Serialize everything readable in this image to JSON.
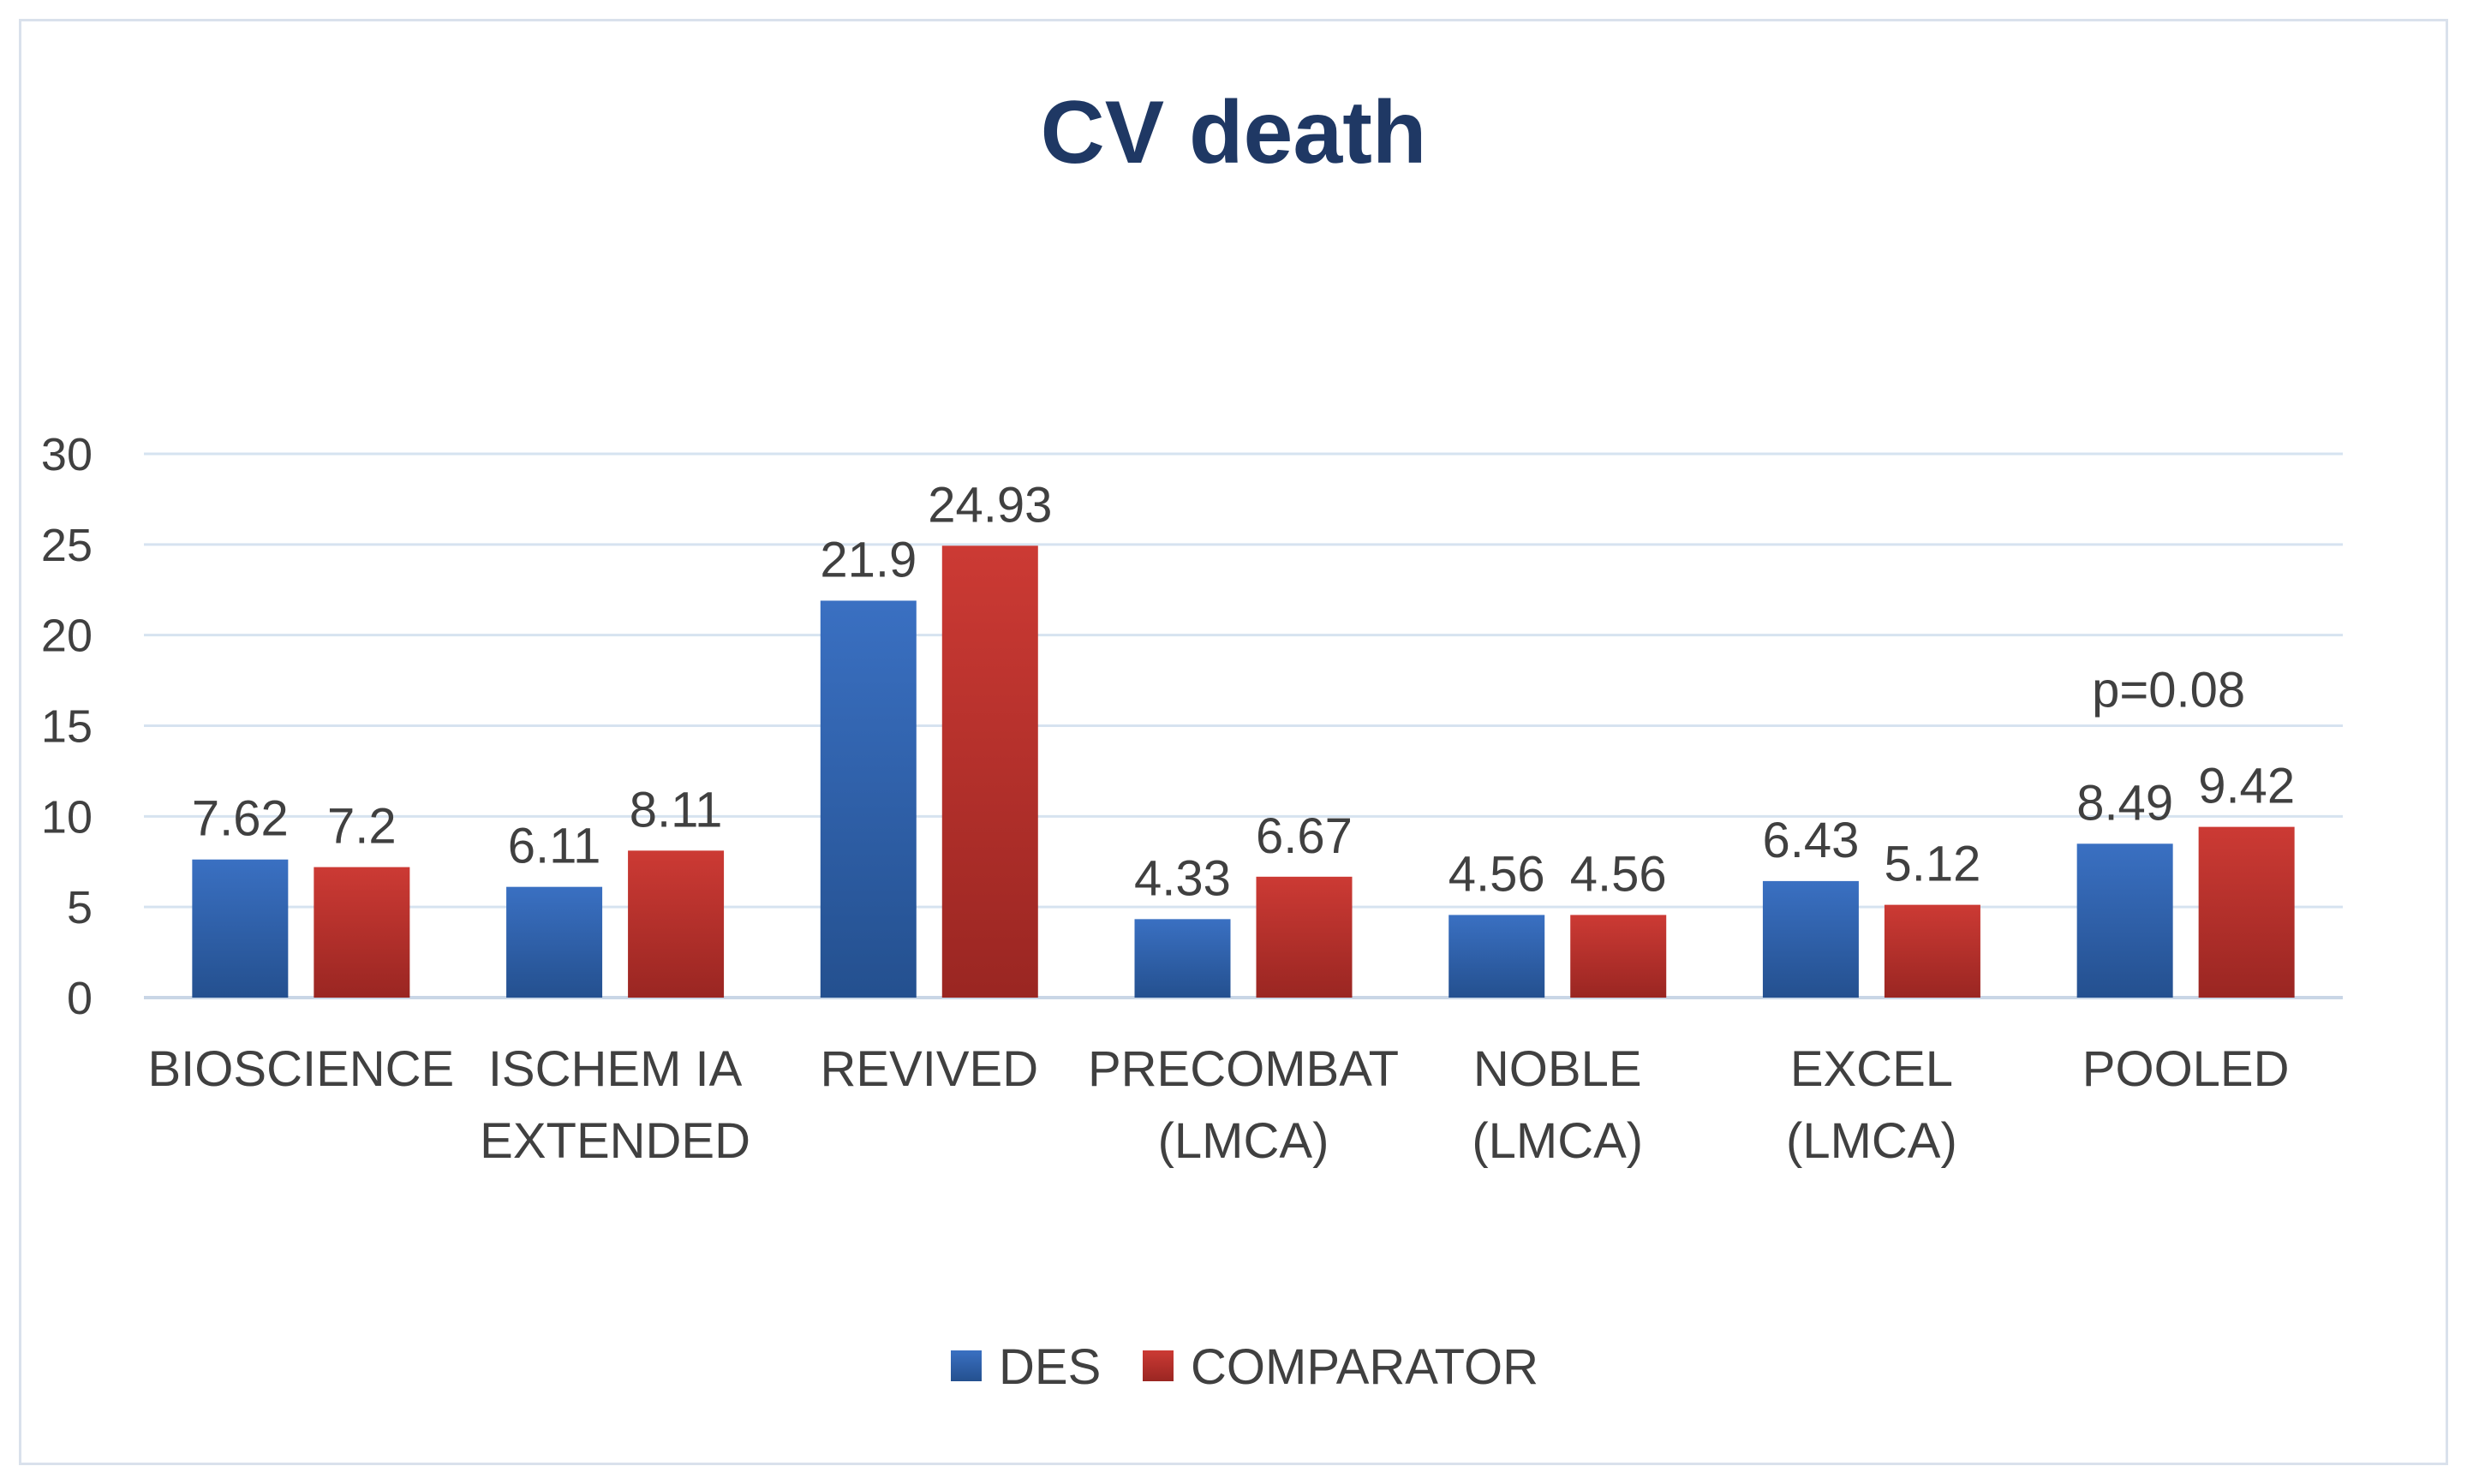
{
  "chart_data": {
    "type": "bar",
    "title": "CV death",
    "xlabel": "",
    "ylabel": "",
    "ylim": [
      0,
      30
    ],
    "yticks": [
      0,
      5,
      10,
      15,
      20,
      25,
      30
    ],
    "grid": true,
    "legend_position": "bottom",
    "categories": [
      [
        "BIOSCIENCE"
      ],
      [
        "ISCHEM IA",
        "EXTENDED"
      ],
      [
        "REVIVED"
      ],
      [
        "PRECOMBAT",
        "(LMCA)"
      ],
      [
        "NOBLE",
        "(LMCA)"
      ],
      [
        "EXCEL",
        "(LMCA)"
      ],
      [
        "POOLED"
      ]
    ],
    "series": [
      {
        "name": "DES",
        "color": "#3a70c2",
        "color_dark": "#24508f",
        "values": [
          7.62,
          6.11,
          21.9,
          4.33,
          4.56,
          6.43,
          8.49
        ],
        "labels": [
          "7.62",
          "6.11",
          "21.9",
          "4.33",
          "4.56",
          "6.43",
          "8.49"
        ]
      },
      {
        "name": "COMPARATOR",
        "color": "#cc3a34",
        "color_dark": "#9a2622",
        "values": [
          7.2,
          8.11,
          24.93,
          6.67,
          4.56,
          5.12,
          9.42
        ],
        "labels": [
          "7.2",
          "8.11",
          "24.93",
          "6.67",
          "4.56",
          "5.12",
          "9.42"
        ]
      }
    ],
    "annotations": [
      {
        "text": "p=0.08",
        "category_index": 6
      }
    ],
    "colors": {
      "title": "#1f3864",
      "text": "#404040",
      "grid": "#d6e3f0",
      "axis": "#c9d6e6"
    }
  }
}
